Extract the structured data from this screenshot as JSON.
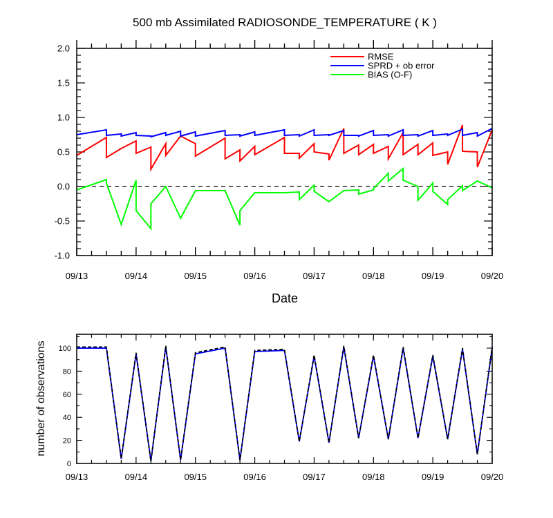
{
  "chart_data": [
    {
      "type": "line",
      "title": "500 mb Assimilated RADIOSONDE_TEMPERATURE ( K )",
      "xlabel": "Date",
      "ylabel": "",
      "xlim": [
        "09/13",
        "09/20"
      ],
      "ylim": [
        -1.0,
        2.0
      ],
      "yticks": [
        "2.0",
        "1.5",
        "1.0",
        "0.5",
        "0.0",
        "-0.5",
        "-1.0"
      ],
      "xtick_labels": [
        "09/13",
        "09/14",
        "09/15",
        "09/16",
        "09/17",
        "09/18",
        "09/19",
        "09/20"
      ],
      "reference_line": {
        "y": 0.0,
        "style": "dashed",
        "color": "#000000"
      },
      "legend_position": "top-right",
      "series": [
        {
          "name": "RMSE",
          "color": "#ff0000",
          "points": [
            [
              "09/13 00Z",
              0.45
            ],
            [
              "09/13 12Z",
              0.71
            ],
            [
              "09/13 12Z",
              0.42
            ],
            [
              "09/13 18Z",
              0.55
            ],
            [
              "09/14 00Z",
              0.66
            ],
            [
              "09/14 00Z",
              0.48
            ],
            [
              "09/14 06Z",
              0.57
            ],
            [
              "09/14 06Z",
              0.25
            ],
            [
              "09/14 12Z",
              0.62
            ],
            [
              "09/14 12Z",
              0.45
            ],
            [
              "09/14 18Z",
              0.73
            ],
            [
              "09/15 00Z",
              0.62
            ],
            [
              "09/15 00Z",
              0.44
            ],
            [
              "09/15 12Z",
              0.7
            ],
            [
              "09/15 12Z",
              0.4
            ],
            [
              "09/15 18Z",
              0.53
            ],
            [
              "09/15 18Z",
              0.37
            ],
            [
              "09/16 00Z",
              0.58
            ],
            [
              "09/16 00Z",
              0.46
            ],
            [
              "09/16 12Z",
              0.71
            ],
            [
              "09/16 12Z",
              0.48
            ],
            [
              "09/16 18Z",
              0.48
            ],
            [
              "09/16 18Z",
              0.41
            ],
            [
              "09/17 00Z",
              0.62
            ],
            [
              "09/17 00Z",
              0.5
            ],
            [
              "09/17 06Z",
              0.47
            ],
            [
              "09/17 06Z",
              0.38
            ],
            [
              "09/17 12Z",
              0.84
            ],
            [
              "09/17 12Z",
              0.48
            ],
            [
              "09/17 18Z",
              0.6
            ],
            [
              "09/17 18Z",
              0.46
            ],
            [
              "09/18 00Z",
              0.61
            ],
            [
              "09/18 00Z",
              0.48
            ],
            [
              "09/18 06Z",
              0.58
            ],
            [
              "09/18 06Z",
              0.4
            ],
            [
              "09/18 12Z",
              0.78
            ],
            [
              "09/18 12Z",
              0.46
            ],
            [
              "09/18 18Z",
              0.61
            ],
            [
              "09/18 18Z",
              0.46
            ],
            [
              "09/19 00Z",
              0.63
            ],
            [
              "09/19 00Z",
              0.45
            ],
            [
              "09/19 06Z",
              0.5
            ],
            [
              "09/19 06Z",
              0.32
            ],
            [
              "09/19 12Z",
              0.89
            ],
            [
              "09/19 12Z",
              0.51
            ],
            [
              "09/19 18Z",
              0.5
            ],
            [
              "09/19 18Z",
              0.28
            ],
            [
              "09/20 00Z",
              0.82
            ]
          ]
        },
        {
          "name": "SPRD + ob error",
          "color": "#0000ff",
          "points": [
            [
              "09/13 00Z",
              0.75
            ],
            [
              "09/13 12Z",
              0.82
            ],
            [
              "09/13 12Z",
              0.74
            ],
            [
              "09/13 18Z",
              0.76
            ],
            [
              "09/13 18Z",
              0.73
            ],
            [
              "09/14 00Z",
              0.78
            ],
            [
              "09/14 00Z",
              0.74
            ],
            [
              "09/14 06Z",
              0.73
            ],
            [
              "09/14 06Z",
              0.72
            ],
            [
              "09/14 12Z",
              0.78
            ],
            [
              "09/14 12Z",
              0.74
            ],
            [
              "09/14 18Z",
              0.8
            ],
            [
              "09/14 18Z",
              0.73
            ],
            [
              "09/15 00Z",
              0.79
            ],
            [
              "09/15 00Z",
              0.73
            ],
            [
              "09/15 12Z",
              0.81
            ],
            [
              "09/15 12Z",
              0.74
            ],
            [
              "09/15 18Z",
              0.75
            ],
            [
              "09/15 18Z",
              0.73
            ],
            [
              "09/16 00Z",
              0.79
            ],
            [
              "09/16 00Z",
              0.74
            ],
            [
              "09/16 12Z",
              0.82
            ],
            [
              "09/16 12Z",
              0.74
            ],
            [
              "09/16 18Z",
              0.75
            ],
            [
              "09/16 18Z",
              0.73
            ],
            [
              "09/17 00Z",
              0.82
            ],
            [
              "09/17 00Z",
              0.74
            ],
            [
              "09/17 06Z",
              0.75
            ],
            [
              "09/17 06Z",
              0.74
            ],
            [
              "09/17 12Z",
              0.81
            ],
            [
              "09/17 12Z",
              0.74
            ],
            [
              "09/17 18Z",
              0.74
            ],
            [
              "09/17 18Z",
              0.73
            ],
            [
              "09/18 00Z",
              0.81
            ],
            [
              "09/18 00Z",
              0.74
            ],
            [
              "09/18 06Z",
              0.75
            ],
            [
              "09/18 06Z",
              0.73
            ],
            [
              "09/18 12Z",
              0.82
            ],
            [
              "09/18 12Z",
              0.74
            ],
            [
              "09/18 18Z",
              0.75
            ],
            [
              "09/18 18Z",
              0.73
            ],
            [
              "09/19 00Z",
              0.81
            ],
            [
              "09/19 00Z",
              0.74
            ],
            [
              "09/19 06Z",
              0.76
            ],
            [
              "09/19 06Z",
              0.74
            ],
            [
              "09/19 12Z",
              0.83
            ],
            [
              "09/19 12Z",
              0.74
            ],
            [
              "09/19 18Z",
              0.78
            ],
            [
              "09/19 18Z",
              0.73
            ],
            [
              "09/20 00Z",
              0.84
            ]
          ]
        },
        {
          "name": "BIAS (O-F)",
          "color": "#00ff00",
          "points": [
            [
              "09/13 00Z",
              -0.05
            ],
            [
              "09/13 12Z",
              0.1
            ],
            [
              "09/13 12Z",
              0.05
            ],
            [
              "09/13 18Z",
              -0.55
            ],
            [
              "09/14 00Z",
              0.09
            ],
            [
              "09/14 00Z",
              -0.35
            ],
            [
              "09/14 06Z",
              -0.61
            ],
            [
              "09/14 06Z",
              -0.25
            ],
            [
              "09/14 12Z",
              0.0
            ],
            [
              "09/14 18Z",
              -0.46
            ],
            [
              "09/15 00Z",
              -0.06
            ],
            [
              "09/15 12Z",
              -0.06
            ],
            [
              "09/15 18Z",
              -0.56
            ],
            [
              "09/15 18Z",
              -0.35
            ],
            [
              "09/16 00Z",
              -0.09
            ],
            [
              "09/16 12Z",
              -0.09
            ],
            [
              "09/16 18Z",
              -0.08
            ],
            [
              "09/16 18Z",
              -0.19
            ],
            [
              "09/17 00Z",
              0.02
            ],
            [
              "09/17 00Z",
              -0.07
            ],
            [
              "09/17 06Z",
              -0.22
            ],
            [
              "09/17 12Z",
              -0.06
            ],
            [
              "09/17 18Z",
              -0.05
            ],
            [
              "09/17 18Z",
              -0.11
            ],
            [
              "09/18 00Z",
              -0.05
            ],
            [
              "09/18 00Z",
              -0.03
            ],
            [
              "09/18 06Z",
              0.19
            ],
            [
              "09/18 06Z",
              0.08
            ],
            [
              "09/18 12Z",
              0.26
            ],
            [
              "09/18 12Z",
              0.09
            ],
            [
              "09/18 18Z",
              0.0
            ],
            [
              "09/18 18Z",
              -0.2
            ],
            [
              "09/19 00Z",
              0.05
            ],
            [
              "09/19 00Z",
              -0.07
            ],
            [
              "09/19 06Z",
              -0.26
            ],
            [
              "09/19 06Z",
              -0.19
            ],
            [
              "09/19 12Z",
              0.01
            ],
            [
              "09/19 12Z",
              -0.06
            ],
            [
              "09/19 18Z",
              0.08
            ],
            [
              "09/20 00Z",
              -0.02
            ]
          ]
        }
      ]
    },
    {
      "type": "line",
      "title": "",
      "xlabel": "",
      "ylabel": "number of observations",
      "xlim": [
        "09/13",
        "09/20"
      ],
      "ylim": [
        0,
        112
      ],
      "yticks": [
        "0",
        "20",
        "40",
        "60",
        "80",
        "100"
      ],
      "xtick_labels": [
        "09/13",
        "09/14",
        "09/15",
        "09/16",
        "09/17",
        "09/18",
        "09/19",
        "09/20"
      ],
      "series": [
        {
          "style": "solid",
          "color": "#0000ff",
          "points": [
            [
              "09/13 00Z",
              100
            ],
            [
              "09/13 12Z",
              100
            ],
            [
              "09/13 18Z",
              4
            ],
            [
              "09/14 00Z",
              95
            ],
            [
              "09/14 06Z",
              2
            ],
            [
              "09/14 12Z",
              101
            ],
            [
              "09/14 18Z",
              3
            ],
            [
              "09/15 00Z",
              95
            ],
            [
              "09/15 12Z",
              100
            ],
            [
              "09/15 18Z",
              3
            ],
            [
              "09/16 00Z",
              97
            ],
            [
              "09/16 12Z",
              98
            ],
            [
              "09/16 18Z",
              19
            ],
            [
              "09/17 00Z",
              93
            ],
            [
              "09/17 06Z",
              18
            ],
            [
              "09/17 12Z",
              101
            ],
            [
              "09/17 18Z",
              22
            ],
            [
              "09/18 00Z",
              93
            ],
            [
              "09/18 06Z",
              21
            ],
            [
              "09/18 12Z",
              100
            ],
            [
              "09/18 18Z",
              22
            ],
            [
              "09/19 00Z",
              93
            ],
            [
              "09/19 06Z",
              21
            ],
            [
              "09/19 12Z",
              99
            ],
            [
              "09/19 18Z",
              8
            ],
            [
              "09/20 00Z",
              100
            ]
          ]
        },
        {
          "style": "dashed",
          "color": "#000000",
          "points": [
            [
              "09/13 00Z",
              101
            ],
            [
              "09/13 12Z",
              101
            ],
            [
              "09/13 18Z",
              4
            ],
            [
              "09/14 00Z",
              96
            ],
            [
              "09/14 06Z",
              2
            ],
            [
              "09/14 12Z",
              102
            ],
            [
              "09/14 18Z",
              3
            ],
            [
              "09/15 00Z",
              96
            ],
            [
              "09/15 12Z",
              101
            ],
            [
              "09/15 18Z",
              3
            ],
            [
              "09/16 00Z",
              98
            ],
            [
              "09/16 12Z",
              99
            ],
            [
              "09/16 18Z",
              19
            ],
            [
              "09/17 00Z",
              94
            ],
            [
              "09/17 06Z",
              18
            ],
            [
              "09/17 12Z",
              102
            ],
            [
              "09/17 18Z",
              22
            ],
            [
              "09/18 00Z",
              94
            ],
            [
              "09/18 06Z",
              21
            ],
            [
              "09/18 12Z",
              101
            ],
            [
              "09/18 18Z",
              22
            ],
            [
              "09/19 00Z",
              94
            ],
            [
              "09/19 06Z",
              21
            ],
            [
              "09/19 12Z",
              100
            ],
            [
              "09/19 18Z",
              8
            ],
            [
              "09/20 00Z",
              101
            ]
          ]
        }
      ]
    }
  ]
}
